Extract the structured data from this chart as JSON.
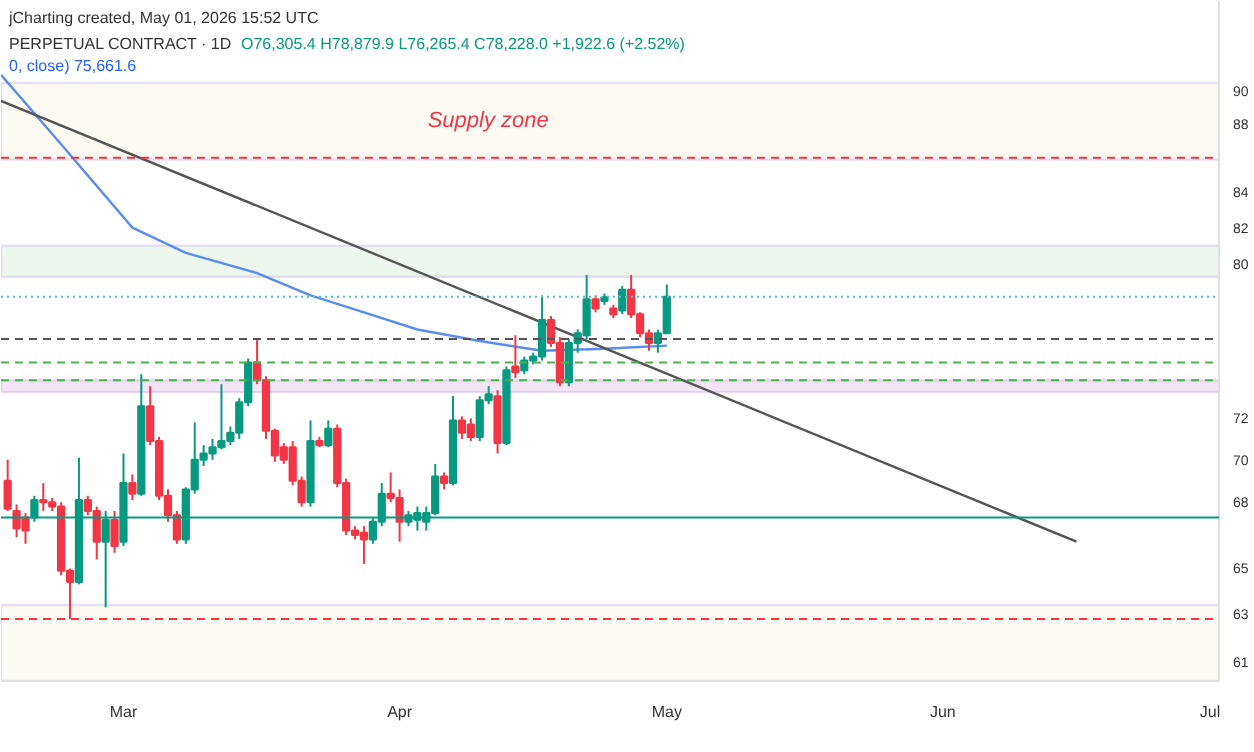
{
  "chart_data": {
    "type": "candlestick",
    "title": "PERPETUAL CONTRACT · 1D",
    "annotations": [
      "jCharting created, May 01, 2026 15:52 UTC",
      "O76,305.4 H78,879.9 L76,265.4 C78,228.0 +1,922.6 (+2.52%)",
      "0, close) 75,661.6"
    ],
    "x": [
      "2026-02-16",
      "2026-02-17",
      "2026-02-18",
      "2026-02-19",
      "2026-02-20",
      "2026-02-21",
      "2026-02-22",
      "2026-02-23",
      "2026-02-24",
      "2026-02-25",
      "2026-02-26",
      "2026-02-27",
      "2026-02-28",
      "2026-03-01",
      "2026-03-02",
      "2026-03-03",
      "2026-03-04",
      "2026-03-05",
      "2026-03-06",
      "2026-03-07",
      "2026-03-08",
      "2026-03-09",
      "2026-03-10",
      "2026-03-11",
      "2026-03-12",
      "2026-03-13",
      "2026-03-14",
      "2026-03-15",
      "2026-03-16",
      "2026-03-17",
      "2026-03-18",
      "2026-03-19",
      "2026-03-20",
      "2026-03-21",
      "2026-03-22",
      "2026-03-23",
      "2026-03-24",
      "2026-03-25",
      "2026-03-26",
      "2026-03-27",
      "2026-03-28",
      "2026-03-29",
      "2026-03-30",
      "2026-03-31",
      "2026-04-01",
      "2026-04-02",
      "2026-04-03",
      "2026-04-04",
      "2026-04-05",
      "2026-04-06",
      "2026-04-07",
      "2026-04-08",
      "2026-04-09",
      "2026-04-10",
      "2026-04-11",
      "2026-04-12",
      "2026-04-13",
      "2026-04-14",
      "2026-04-15",
      "2026-04-16",
      "2026-04-17",
      "2026-04-18",
      "2026-04-19",
      "2026-04-20",
      "2026-04-21",
      "2026-04-22",
      "2026-04-23",
      "2026-04-24",
      "2026-04-25",
      "2026-04-26",
      "2026-04-27",
      "2026-04-28",
      "2026-04-29",
      "2026-04-30",
      "2026-05-01"
    ],
    "ohlc": [
      [
        69.0,
        70.0,
        67.6,
        67.7
      ],
      [
        67.6,
        67.9,
        66.4,
        66.8
      ],
      [
        67.3,
        67.5,
        66.1,
        66.7
      ],
      [
        67.3,
        68.3,
        67.1,
        68.1
      ],
      [
        68.1,
        68.9,
        67.6,
        68.0
      ],
      [
        68.0,
        68.2,
        67.6,
        67.8
      ],
      [
        67.8,
        68.0,
        64.7,
        64.9
      ],
      [
        64.9,
        65.0,
        62.8,
        64.4
      ],
      [
        64.4,
        70.1,
        64.3,
        68.1
      ],
      [
        68.1,
        68.3,
        67.4,
        67.6
      ],
      [
        67.6,
        67.8,
        65.4,
        66.2
      ],
      [
        66.2,
        67.6,
        63.3,
        67.2
      ],
      [
        67.2,
        67.6,
        65.7,
        66.0
      ],
      [
        66.2,
        70.3,
        66.0,
        68.9
      ],
      [
        68.9,
        69.3,
        68.1,
        68.4
      ],
      [
        68.4,
        74.2,
        68.3,
        72.6
      ],
      [
        72.6,
        73.6,
        70.7,
        70.9
      ],
      [
        70.9,
        71.1,
        68.1,
        68.3
      ],
      [
        68.3,
        68.6,
        67.1,
        67.4
      ],
      [
        67.4,
        67.6,
        66.1,
        66.3
      ],
      [
        66.3,
        68.7,
        66.1,
        68.6
      ],
      [
        68.6,
        71.8,
        68.4,
        70.0
      ],
      [
        70.0,
        70.7,
        69.7,
        70.3
      ],
      [
        70.3,
        71.0,
        70.0,
        70.6
      ],
      [
        70.6,
        73.7,
        70.5,
        70.9
      ],
      [
        70.9,
        71.6,
        70.7,
        71.3
      ],
      [
        71.3,
        73.0,
        71.0,
        72.8
      ],
      [
        72.8,
        75.0,
        72.6,
        74.8
      ],
      [
        74.8,
        76.0,
        73.7,
        73.9
      ],
      [
        73.9,
        74.1,
        71.0,
        71.4
      ],
      [
        71.4,
        71.5,
        69.9,
        70.2
      ],
      [
        70.6,
        70.8,
        69.8,
        70.0
      ],
      [
        70.6,
        70.9,
        68.8,
        69.0
      ],
      [
        69.0,
        69.2,
        67.8,
        68.0
      ],
      [
        68.0,
        71.9,
        67.8,
        70.9
      ],
      [
        70.9,
        71.1,
        70.6,
        70.7
      ],
      [
        70.7,
        71.9,
        70.6,
        71.5
      ],
      [
        71.5,
        71.7,
        68.7,
        68.9
      ],
      [
        68.9,
        69.1,
        66.5,
        66.7
      ],
      [
        66.7,
        66.9,
        66.3,
        66.5
      ],
      [
        66.6,
        66.9,
        65.2,
        66.3
      ],
      [
        66.3,
        67.3,
        66.1,
        67.1
      ],
      [
        67.1,
        68.9,
        66.9,
        68.4
      ],
      [
        68.4,
        69.4,
        68.0,
        68.2
      ],
      [
        68.2,
        68.6,
        66.2,
        67.1
      ],
      [
        67.1,
        67.6,
        66.9,
        67.4
      ],
      [
        67.2,
        67.8,
        66.7,
        67.5
      ],
      [
        67.1,
        67.8,
        66.7,
        67.5
      ],
      [
        67.5,
        69.8,
        67.4,
        69.2
      ],
      [
        69.2,
        69.4,
        68.6,
        68.9
      ],
      [
        68.9,
        73.1,
        68.8,
        71.9
      ],
      [
        71.9,
        72.1,
        71.0,
        71.3
      ],
      [
        71.7,
        72.0,
        70.9,
        71.1
      ],
      [
        71.1,
        73.1,
        70.9,
        72.9
      ],
      [
        72.9,
        73.6,
        72.7,
        73.2
      ],
      [
        73.1,
        73.4,
        70.3,
        70.8
      ],
      [
        70.8,
        74.6,
        70.7,
        74.4
      ],
      [
        74.6,
        76.2,
        74.0,
        74.3
      ],
      [
        74.4,
        75.1,
        74.2,
        74.9
      ],
      [
        74.9,
        75.3,
        74.7,
        75.1
      ],
      [
        75.1,
        78.3,
        74.9,
        77.0
      ],
      [
        77.0,
        77.2,
        75.6,
        75.8
      ],
      [
        75.8,
        76.1,
        73.6,
        73.8
      ],
      [
        73.8,
        76.0,
        73.6,
        75.8
      ],
      [
        75.8,
        76.5,
        75.3,
        76.3
      ],
      [
        76.2,
        79.4,
        76.0,
        78.1
      ],
      [
        78.1,
        78.3,
        77.4,
        77.6
      ],
      [
        78.0,
        78.4,
        77.8,
        78.2
      ],
      [
        77.6,
        77.8,
        77.1,
        77.3
      ],
      [
        77.5,
        78.8,
        77.3,
        78.6
      ],
      [
        78.6,
        79.4,
        77.1,
        77.3
      ],
      [
        77.3,
        77.4,
        76.1,
        76.3
      ],
      [
        76.3,
        76.5,
        75.4,
        75.8
      ],
      [
        75.8,
        76.5,
        75.3,
        76.3
      ],
      [
        76.3054,
        78.8799,
        76.2654,
        78.228
      ]
    ],
    "colors": [
      "#f23645",
      "#f23645",
      "#f23645",
      "#089981",
      "#f23645",
      "#f23645",
      "#f23645",
      "#f23645",
      "#089981",
      "#f23645",
      "#f23645",
      "#089981",
      "#f23645",
      "#089981",
      "#f23645",
      "#089981",
      "#f23645",
      "#f23645",
      "#f23645",
      "#f23645",
      "#089981",
      "#089981",
      "#089981",
      "#089981",
      "#089981",
      "#089981",
      "#089981",
      "#089981",
      "#f23645",
      "#f23645",
      "#f23645",
      "#f23645",
      "#f23645",
      "#f23645",
      "#089981",
      "#f23645",
      "#089981",
      "#f23645",
      "#f23645",
      "#f23645",
      "#f23645",
      "#089981",
      "#089981",
      "#f23645",
      "#f23645",
      "#089981",
      "#089981",
      "#089981",
      "#089981",
      "#f23645",
      "#089981",
      "#f23645",
      "#f23645",
      "#089981",
      "#089981",
      "#f23645",
      "#089981",
      "#f23645",
      "#089981",
      "#089981",
      "#089981",
      "#f23645",
      "#f23645",
      "#089981",
      "#089981",
      "#089981",
      "#f23645",
      "#089981",
      "#f23645",
      "#089981",
      "#f23645",
      "#f23645",
      "#f23645",
      "#089981",
      "#089981"
    ],
    "series": [
      {
        "type": "line",
        "color": "#5b8def",
        "x": [
          "2026-02-15T06:00",
          "2026-02-22",
          "2026-03-02",
          "2026-03-08",
          "2026-03-16",
          "2026-03-22",
          "2026-03-28",
          "2026-04-03",
          "2026-04-10",
          "2026-04-17",
          "2026-04-24",
          "2026-05-01"
        ],
        "values": [
          91.0,
          86.8,
          82.0,
          80.6,
          79.5,
          78.3,
          77.4,
          76.5,
          75.9,
          75.4,
          75.5,
          75.6616
        ]
      },
      {
        "type": "line",
        "color": "#555555",
        "x": [
          "2026-02-15T06:00",
          "2026-06-16"
        ],
        "values": [
          89.4,
          66.2
        ]
      }
    ],
    "bands": [
      {
        "axis": "y",
        "from": 85.9,
        "to": 90.5,
        "label": "Supply zone",
        "color": "#fdfaf3"
      },
      {
        "axis": "y",
        "from": 79.3,
        "to": 81.0,
        "label": null,
        "color": "#eef7ee"
      },
      {
        "axis": "y",
        "from": 73.3,
        "to": 73.9,
        "label": null,
        "color": "#f3e5f5"
      },
      {
        "axis": "y",
        "from": 60.2,
        "to": 63.4,
        "label": null,
        "color": "#fdfaf3"
      }
    ],
    "ref_lines": [
      {
        "axis": "y",
        "value": 86.0,
        "color": "#f23645",
        "line_style": "dashed"
      },
      {
        "axis": "y",
        "value": 78.228,
        "color": "#4fc3c8",
        "line_style": "dotted"
      },
      {
        "axis": "y",
        "value": 76.0,
        "color": "#555555",
        "line_style": "dashed"
      },
      {
        "axis": "y",
        "value": 74.8,
        "color": "#4caf50",
        "line_style": "dashed"
      },
      {
        "axis": "y",
        "value": 73.9,
        "color": "#4caf50",
        "line_style": "dashed"
      },
      {
        "axis": "y",
        "value": 67.3,
        "color": "#089981",
        "line_style": "solid"
      },
      {
        "axis": "y",
        "value": 62.8,
        "color": "#f23645",
        "line_style": "dashed"
      }
    ],
    "log": true,
    "xlim": [
      "2026-02-15T06:00",
      "2026-07-02"
    ],
    "xticks": [
      {
        "value": "2026-03-01",
        "label": "Mar"
      },
      {
        "value": "2026-04-01",
        "label": "Apr"
      },
      {
        "value": "2026-05-01",
        "label": "May"
      },
      {
        "value": "2026-06-01",
        "label": "Jun"
      },
      {
        "value": "2026-07-01",
        "label": "Jul"
      }
    ],
    "ylim": [
      60.2,
      95.7
    ],
    "yticks": [
      90,
      88,
      84,
      82,
      80,
      72,
      70,
      68,
      65,
      63,
      61
    ]
  }
}
